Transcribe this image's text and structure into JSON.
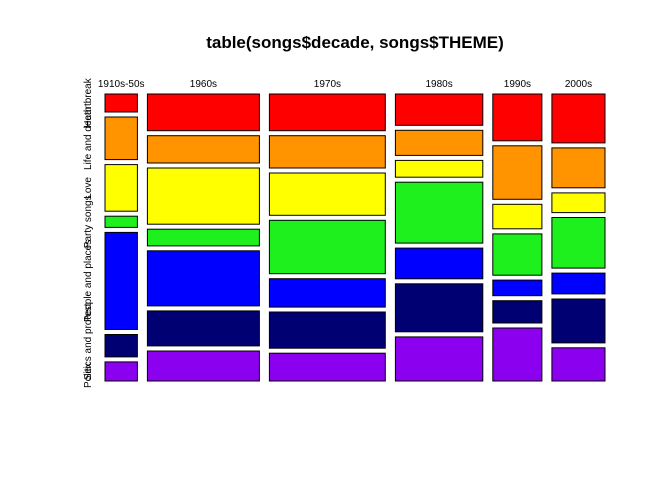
{
  "chart_data": {
    "type": "mosaic",
    "title": "table(songs$decade, songs$THEME)",
    "xlabel": "",
    "ylabel": "",
    "categories": [
      "1910s-50s",
      "1960s",
      "1970s",
      "1980s",
      "1990s",
      "2000s"
    ],
    "col_shares": [
      0.066,
      0.228,
      0.236,
      0.178,
      0.1,
      0.108
    ],
    "series": [
      {
        "name": "Heartbreak",
        "color": "#FF0000",
        "values": [
          0.064,
          0.132,
          0.132,
          0.112,
          0.168,
          0.174
        ]
      },
      {
        "name": "Life and death",
        "color": "#FF9400",
        "values": [
          0.152,
          0.098,
          0.116,
          0.09,
          0.192,
          0.142
        ]
      },
      {
        "name": "Love",
        "color": "#FFFF00",
        "values": [
          0.166,
          0.202,
          0.152,
          0.06,
          0.088,
          0.07
        ]
      },
      {
        "name": "Party songs",
        "color": "#1EF01E",
        "values": [
          0.04,
          0.06,
          0.192,
          0.218,
          0.148,
          0.18
        ]
      },
      {
        "name": "People and places",
        "color": "#0000FF",
        "values": [
          0.346,
          0.198,
          0.102,
          0.11,
          0.056,
          0.074
        ]
      },
      {
        "name": "Politics and protest",
        "color": "#000073",
        "values": [
          0.08,
          0.126,
          0.13,
          0.172,
          0.08,
          0.156
        ]
      },
      {
        "name": "Sex",
        "color": "#8C00F0",
        "values": [
          0.068,
          0.108,
          0.1,
          0.158,
          0.19,
          0.118
        ]
      }
    ]
  }
}
